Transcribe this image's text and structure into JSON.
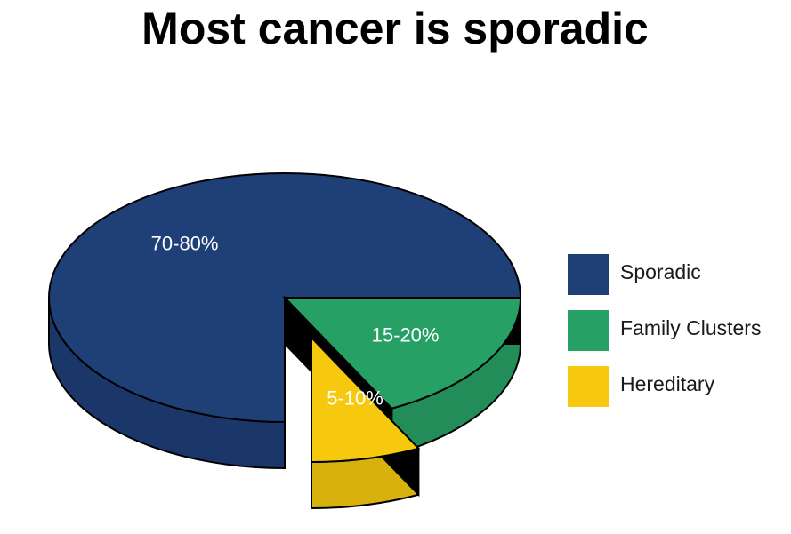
{
  "chart_data": {
    "type": "pie",
    "title": "Most cancer is sporadic",
    "categories": [
      "Sporadic",
      "Family Clusters",
      "Hereditary"
    ],
    "values": [
      75,
      17.5,
      7.5
    ],
    "value_labels": [
      "70-80%",
      "15-20%",
      "5-10%"
    ],
    "colors": [
      "#1f3f77",
      "#27a065",
      "#f6c90e"
    ],
    "legend": "right"
  }
}
